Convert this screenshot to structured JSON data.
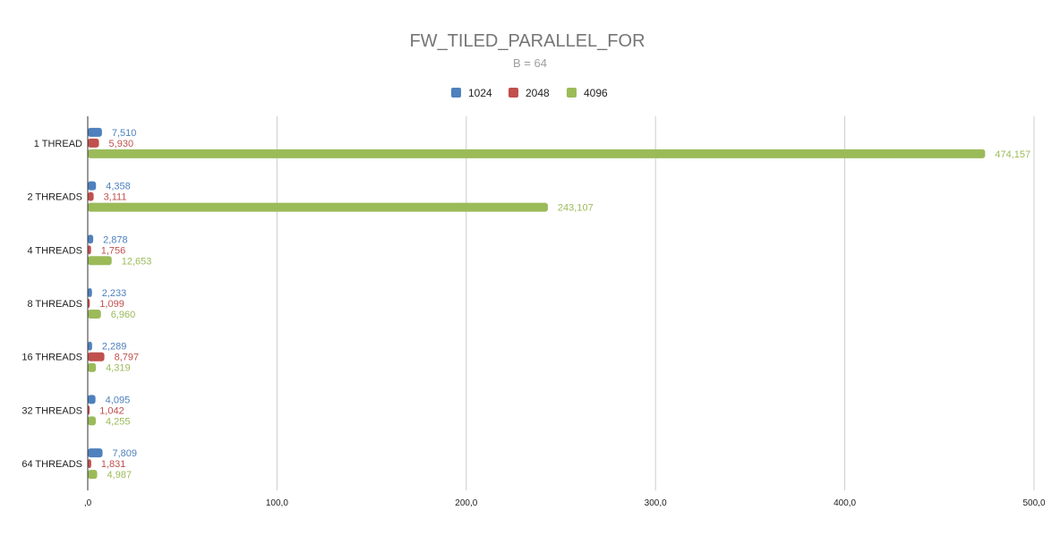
{
  "chart_data": {
    "type": "bar",
    "orientation": "horizontal",
    "title": "FW_TILED_PARALLEL_FOR",
    "subtitle": "B = 64",
    "legend_position": "top",
    "grid": true,
    "categories": [
      "1 THREAD",
      "2 THREADS",
      "4 THREADS",
      "8 THREADS",
      "16 THREADS",
      "32 THREADS",
      "64 THREADS"
    ],
    "series": [
      {
        "name": "1024",
        "color": "#4e81bd",
        "values": [
          7.51,
          4.358,
          2.878,
          2.233,
          2.289,
          4.095,
          7.809
        ],
        "labels": [
          "7,510",
          "4,358",
          "2,878",
          "2,233",
          "2,289",
          "4,095",
          "7,809"
        ]
      },
      {
        "name": "2048",
        "color": "#c0504d",
        "values": [
          5.93,
          3.111,
          1.756,
          1.099,
          8.797,
          1.042,
          1.831
        ],
        "labels": [
          "5,930",
          "3,111",
          "1,756",
          "1,099",
          "8,797",
          "1,042",
          "1,831"
        ]
      },
      {
        "name": "4096",
        "color": "#9bbb59",
        "values": [
          474.157,
          243.107,
          12.653,
          6.96,
          4.319,
          4.255,
          4.987
        ],
        "labels": [
          "474,157",
          "243,107",
          "12,653",
          "6,960",
          "4,319",
          "4,255",
          "4,987"
        ]
      }
    ],
    "xlim": [
      0,
      500
    ],
    "xticks": [
      0,
      100,
      200,
      300,
      400,
      500
    ],
    "xtick_labels": [
      ",0",
      "100,0",
      "200,0",
      "300,0",
      "400,0",
      "500,0"
    ],
    "xlabel": "",
    "ylabel": ""
  }
}
